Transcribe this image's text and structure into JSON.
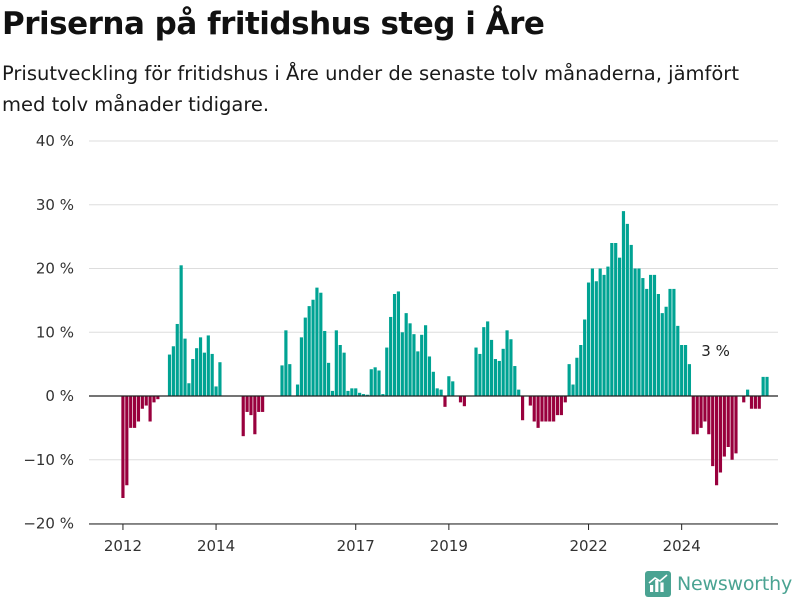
{
  "title": "Priserna på fritidshus steg i Åre",
  "subtitle": "Prisutveckling för fritidshus i Åre under de senaste tolv månaderna, jämfört med tolv månader tidigare.",
  "brand": "Newsworthy",
  "colors": {
    "positive": "#00a393",
    "negative": "#99003d",
    "grid": "#dddddd",
    "axis": "#222222"
  },
  "chart_data": {
    "type": "bar",
    "x_start": "2012-01",
    "x_end": "2024-10",
    "x_ticks": [
      {
        "label": "2012",
        "date": "2012-01"
      },
      {
        "label": "2014",
        "date": "2014-01"
      },
      {
        "label": "2017",
        "date": "2017-01"
      },
      {
        "label": "2019",
        "date": "2019-01"
      },
      {
        "label": "2022",
        "date": "2022-01"
      },
      {
        "label": "2024",
        "date": "2024-01"
      }
    ],
    "y_ticks": [
      {
        "label": "40 %",
        "value": 40
      },
      {
        "label": "30 %",
        "value": 30
      },
      {
        "label": "20 %",
        "value": 20
      },
      {
        "label": "10 %",
        "value": 10
      },
      {
        "label": "0 %",
        "value": 0
      },
      {
        "label": "−10 %",
        "value": -10
      },
      {
        "label": "−20 %",
        "value": -20
      }
    ],
    "ylim": [
      -20,
      40
    ],
    "unit": "%",
    "annotation": {
      "label": "3 %",
      "date": "2024-10",
      "value": 3
    },
    "values": [
      -16,
      -14,
      -5,
      -5,
      -4,
      -2,
      -1.5,
      -4,
      -1,
      -0.5,
      0,
      0,
      6.5,
      7.8,
      11.3,
      20.5,
      9,
      2,
      5.8,
      7.5,
      9.2,
      6.8,
      9.5,
      6.6,
      1.5,
      5.3,
      null,
      null,
      null,
      null,
      null,
      -6.3,
      -2.5,
      -3,
      -6,
      -2.5,
      -2.5,
      null,
      null,
      null,
      null,
      4.8,
      10.3,
      5,
      null,
      1.8,
      9.2,
      12.3,
      14.1,
      15.1,
      17,
      16.2,
      10.2,
      5.2,
      0.8,
      10.3,
      8,
      6.8,
      0.8,
      1.2,
      1.2,
      0.5,
      0.3,
      0.2,
      4.2,
      4.5,
      4,
      0.3,
      7.6,
      12.4,
      16,
      16.4,
      10,
      13,
      11.4,
      9.7,
      7,
      9.6,
      11.1,
      6.2,
      3.8,
      1.2,
      1,
      -1.7,
      3.1,
      2.3,
      0,
      -1,
      -1.6,
      null,
      null,
      7.6,
      6.6,
      10.8,
      11.7,
      8.8,
      5.8,
      5.5,
      7.4,
      10.3,
      8.9,
      4.7,
      1,
      -3.8,
      null,
      -1.5,
      -4,
      -5,
      -4,
      -4,
      -4,
      -4,
      -3,
      -3,
      -1,
      5,
      1.8,
      6,
      8,
      12,
      17.8,
      20,
      18,
      20,
      19,
      20.3,
      24,
      24,
      21.7,
      29,
      27,
      23.7,
      20,
      20,
      18.5,
      16.8,
      19,
      19,
      16,
      13,
      14,
      16.8,
      16.8,
      11,
      8,
      8,
      5,
      -6,
      -6,
      -5,
      -4,
      -6,
      -11,
      -14,
      -12,
      -9.5,
      -8,
      -10,
      -9,
      null,
      -1,
      1,
      -2,
      -2,
      -2,
      3,
      3
    ]
  }
}
